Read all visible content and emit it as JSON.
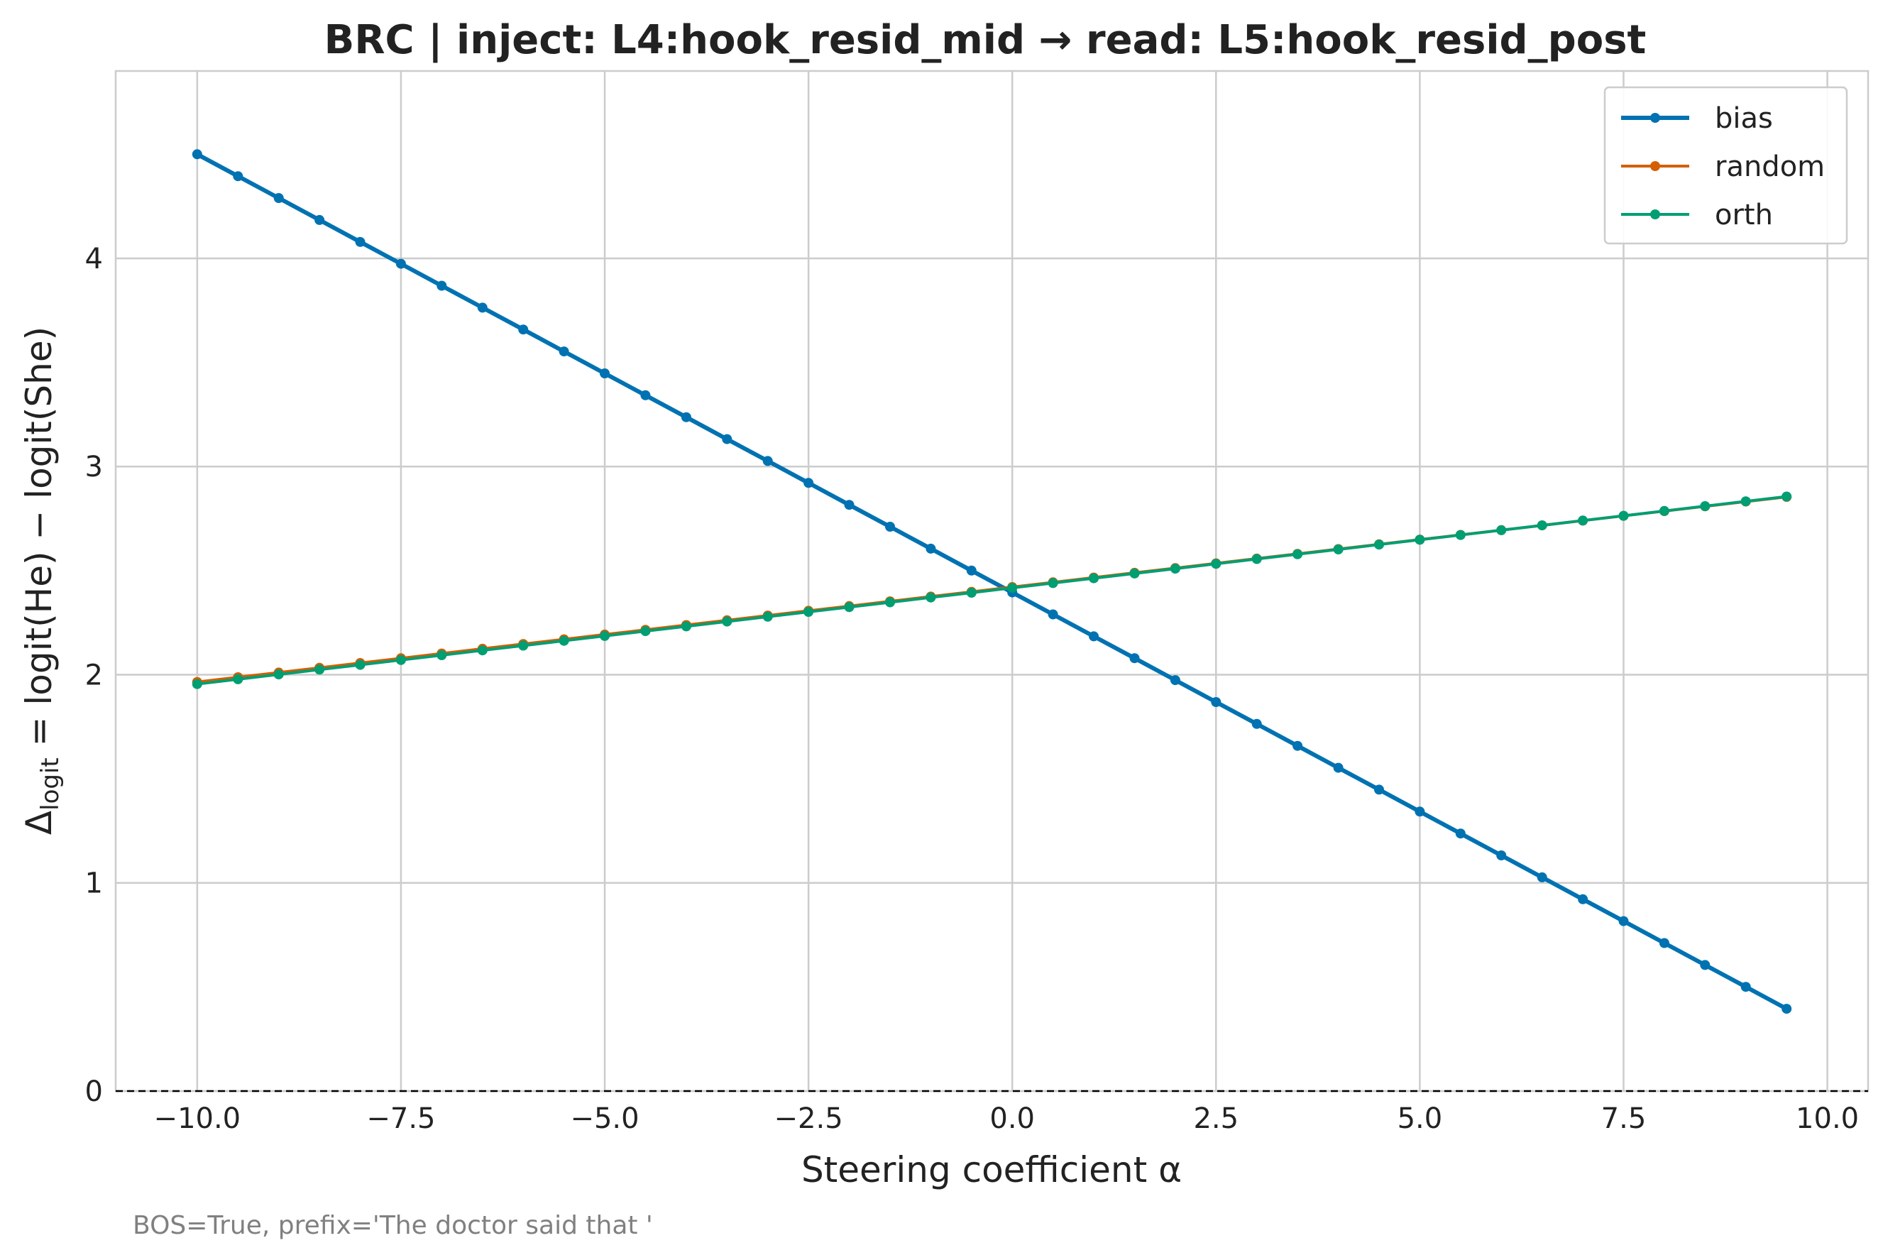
{
  "chart_data": {
    "type": "line",
    "title": "BRC | inject: L4:hook_resid_mid → read: L5:hook_resid_post",
    "xlabel": "Steering coefficient α",
    "ylabel_prefix": "Δ",
    "ylabel_subscript": "logit",
    "ylabel_suffix": " = logit(He) − logit(She)",
    "footnote": "BOS=True, prefix='The doctor said that '",
    "xlim": [
      -11,
      10.5
    ],
    "ylim": [
      0,
      4.9
    ],
    "x_ticks": [
      -10,
      -7.5,
      -5,
      -2.5,
      0,
      2.5,
      5,
      7.5,
      10
    ],
    "x_tick_labels": [
      "−10.0",
      "−7.5",
      "−5.0",
      "−2.5",
      "0.0",
      "2.5",
      "5.0",
      "7.5",
      "10.0"
    ],
    "y_ticks": [
      0,
      1,
      2,
      3,
      4
    ],
    "y_tick_labels": [
      "0",
      "1",
      "2",
      "3",
      "4"
    ],
    "grid": true,
    "reference_line": {
      "y": 0,
      "style": "dashed",
      "color": "#000000"
    },
    "legend_position": "top-right",
    "x": {
      "start": -10,
      "stop": 9.5,
      "step": 0.5
    },
    "series": [
      {
        "name": "bias",
        "color": "#0072b2",
        "y_at_start": 4.5,
        "slope": -0.2105,
        "width": 6
      },
      {
        "name": "random",
        "color": "#d55e00",
        "y_at_start": 1.965,
        "slope": 0.0456,
        "width": 4
      },
      {
        "name": "orth",
        "color": "#009e73",
        "y_at_start": 1.955,
        "slope": 0.0462,
        "width": 4
      }
    ]
  }
}
